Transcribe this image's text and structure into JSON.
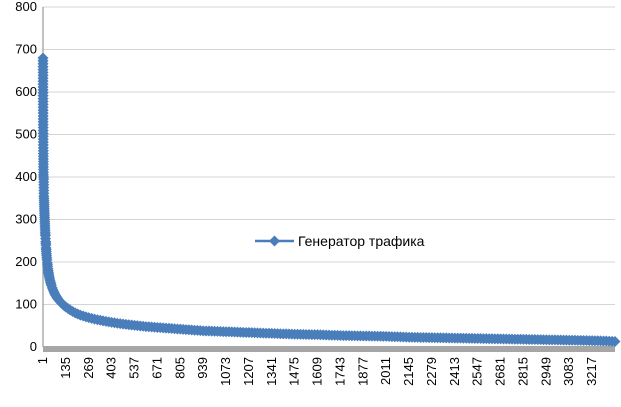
{
  "chart_data": {
    "type": "line",
    "marker": "diamond",
    "color": "#4a7ebb",
    "grid": true,
    "legend_position": "center-right",
    "ylim": [
      0,
      800
    ],
    "y_ticks": [
      0,
      100,
      200,
      300,
      400,
      500,
      600,
      700,
      800
    ],
    "xlim": [
      1,
      3351
    ],
    "x_tick_labels": [
      "1",
      "135",
      "269",
      "403",
      "537",
      "671",
      "805",
      "939",
      "1073",
      "1207",
      "1341",
      "1475",
      "1609",
      "1743",
      "1877",
      "2011",
      "2145",
      "2279",
      "2413",
      "2547",
      "2681",
      "2815",
      "2949",
      "3083",
      "3217"
    ],
    "series": [
      {
        "name": "Генератор трафика",
        "x": [
          1,
          2,
          3,
          4,
          5,
          6,
          7,
          8,
          9,
          10,
          11,
          12,
          13,
          14,
          15,
          16,
          17,
          18,
          19,
          20,
          22,
          24,
          26,
          28,
          30,
          33,
          36,
          40,
          45,
          50,
          55,
          60,
          70,
          80,
          90,
          100,
          120,
          135,
          160,
          190,
          220,
          269,
          320,
          403,
          470,
          537,
          604,
          671,
          738,
          805,
          872,
          939,
          1006,
          1073,
          1207,
          1341,
          1475,
          1609,
          1743,
          1877,
          2011,
          2145,
          2279,
          2413,
          2547,
          2681,
          2815,
          2949,
          3083,
          3217,
          3300,
          3351
        ],
        "y": [
          680,
          530,
          455,
          405,
          395,
          355,
          345,
          335,
          320,
          310,
          300,
          290,
          280,
          270,
          262,
          255,
          248,
          240,
          233,
          225,
          215,
          205,
          198,
          190,
          184,
          176,
          168,
          160,
          152,
          145,
          139,
          134,
          125,
          118,
          112,
          107,
          99,
          94,
          87,
          80,
          75,
          69,
          64,
          58,
          54,
          51,
          48,
          46,
          44,
          42,
          40,
          38,
          37,
          36,
          34,
          32,
          30,
          29,
          27,
          26,
          25,
          23,
          22,
          21,
          20,
          19,
          18,
          17,
          16,
          15,
          14,
          13
        ]
      }
    ]
  }
}
